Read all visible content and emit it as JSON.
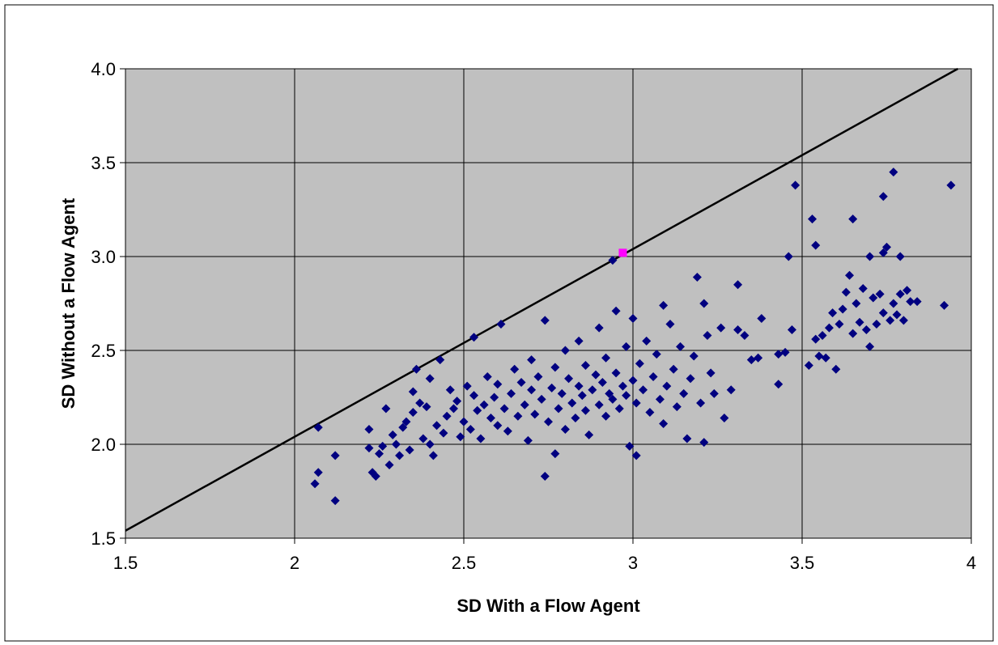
{
  "chart_data": {
    "type": "scatter",
    "xlabel": "SD With a Flow Agent",
    "ylabel": "SD Without a Flow Agent",
    "xlim": [
      1.5,
      4
    ],
    "ylim": [
      1.5,
      4.0
    ],
    "x_ticks": [
      "1.5",
      "2",
      "2.5",
      "3",
      "3.5",
      "4"
    ],
    "y_ticks": [
      "1.5",
      "2.0",
      "2.5",
      "3.0",
      "3.5",
      "4.0"
    ],
    "grid": true,
    "plot_background": "#c0c0c0",
    "reference_line": {
      "name": "",
      "x": [
        1.5,
        3.96
      ],
      "y": [
        1.54,
        4.0
      ],
      "color": "#000000"
    },
    "series": [
      {
        "marker": "diamond",
        "color": "#000080",
        "points": [
          [
            2.07,
            2.09
          ],
          [
            2.06,
            1.79
          ],
          [
            2.07,
            1.85
          ],
          [
            2.12,
            1.94
          ],
          [
            2.12,
            1.7
          ],
          [
            2.22,
            2.08
          ],
          [
            2.22,
            1.98
          ],
          [
            2.23,
            1.85
          ],
          [
            2.24,
            1.83
          ],
          [
            2.25,
            1.95
          ],
          [
            2.26,
            1.99
          ],
          [
            2.27,
            2.19
          ],
          [
            2.28,
            1.89
          ],
          [
            2.29,
            2.05
          ],
          [
            2.3,
            2.0
          ],
          [
            2.31,
            1.94
          ],
          [
            2.32,
            2.09
          ],
          [
            2.33,
            2.12
          ],
          [
            2.34,
            1.97
          ],
          [
            2.35,
            2.17
          ],
          [
            2.35,
            2.28
          ],
          [
            2.36,
            2.4
          ],
          [
            2.37,
            2.22
          ],
          [
            2.38,
            2.03
          ],
          [
            2.39,
            2.2
          ],
          [
            2.4,
            2.0
          ],
          [
            2.4,
            2.35
          ],
          [
            2.41,
            1.94
          ],
          [
            2.42,
            2.1
          ],
          [
            2.43,
            2.45
          ],
          [
            2.44,
            2.06
          ],
          [
            2.45,
            2.15
          ],
          [
            2.46,
            2.29
          ],
          [
            2.47,
            2.19
          ],
          [
            2.48,
            2.23
          ],
          [
            2.49,
            2.04
          ],
          [
            2.5,
            2.12
          ],
          [
            2.51,
            2.31
          ],
          [
            2.52,
            2.08
          ],
          [
            2.53,
            2.26
          ],
          [
            2.53,
            2.57
          ],
          [
            2.54,
            2.18
          ],
          [
            2.55,
            2.03
          ],
          [
            2.56,
            2.21
          ],
          [
            2.57,
            2.36
          ],
          [
            2.58,
            2.14
          ],
          [
            2.59,
            2.25
          ],
          [
            2.6,
            2.1
          ],
          [
            2.6,
            2.32
          ],
          [
            2.61,
            2.64
          ],
          [
            2.62,
            2.19
          ],
          [
            2.63,
            2.07
          ],
          [
            2.64,
            2.27
          ],
          [
            2.65,
            2.4
          ],
          [
            2.66,
            2.15
          ],
          [
            2.67,
            2.33
          ],
          [
            2.68,
            2.21
          ],
          [
            2.69,
            2.02
          ],
          [
            2.7,
            2.29
          ],
          [
            2.7,
            2.45
          ],
          [
            2.71,
            2.16
          ],
          [
            2.72,
            2.36
          ],
          [
            2.73,
            2.24
          ],
          [
            2.74,
            1.83
          ],
          [
            2.74,
            2.66
          ],
          [
            2.75,
            2.12
          ],
          [
            2.76,
            2.3
          ],
          [
            2.77,
            1.95
          ],
          [
            2.77,
            2.41
          ],
          [
            2.78,
            2.19
          ],
          [
            2.79,
            2.27
          ],
          [
            2.8,
            2.08
          ],
          [
            2.8,
            2.5
          ],
          [
            2.81,
            2.35
          ],
          [
            2.82,
            2.22
          ],
          [
            2.83,
            2.14
          ],
          [
            2.84,
            2.31
          ],
          [
            2.84,
            2.55
          ],
          [
            2.85,
            2.26
          ],
          [
            2.86,
            2.18
          ],
          [
            2.86,
            2.42
          ],
          [
            2.87,
            2.05
          ],
          [
            2.88,
            2.29
          ],
          [
            2.89,
            2.37
          ],
          [
            2.9,
            2.21
          ],
          [
            2.9,
            2.62
          ],
          [
            2.91,
            2.33
          ],
          [
            2.92,
            2.15
          ],
          [
            2.92,
            2.46
          ],
          [
            2.93,
            2.27
          ],
          [
            2.94,
            2.24
          ],
          [
            2.94,
            2.98
          ],
          [
            2.95,
            2.71
          ],
          [
            2.95,
            2.38
          ],
          [
            2.96,
            2.19
          ],
          [
            2.97,
            2.31
          ],
          [
            2.98,
            2.52
          ],
          [
            2.98,
            2.26
          ],
          [
            2.99,
            1.99
          ],
          [
            3.0,
            2.34
          ],
          [
            3.0,
            2.67
          ],
          [
            3.01,
            2.22
          ],
          [
            3.01,
            1.94
          ],
          [
            3.02,
            2.43
          ],
          [
            3.03,
            2.29
          ],
          [
            3.04,
            2.55
          ],
          [
            3.05,
            2.17
          ],
          [
            3.06,
            2.36
          ],
          [
            3.07,
            2.48
          ],
          [
            3.08,
            2.24
          ],
          [
            3.09,
            2.74
          ],
          [
            3.09,
            2.11
          ],
          [
            3.1,
            2.31
          ],
          [
            3.11,
            2.64
          ],
          [
            3.12,
            2.4
          ],
          [
            3.13,
            2.2
          ],
          [
            3.14,
            2.52
          ],
          [
            3.15,
            2.27
          ],
          [
            3.16,
            2.03
          ],
          [
            3.17,
            2.35
          ],
          [
            3.18,
            2.47
          ],
          [
            3.19,
            2.89
          ],
          [
            3.2,
            2.22
          ],
          [
            3.21,
            2.75
          ],
          [
            3.21,
            2.01
          ],
          [
            3.22,
            2.58
          ],
          [
            3.23,
            2.38
          ],
          [
            3.24,
            2.27
          ],
          [
            3.26,
            2.62
          ],
          [
            3.27,
            2.14
          ],
          [
            3.29,
            2.29
          ],
          [
            3.31,
            2.85
          ],
          [
            3.31,
            2.61
          ],
          [
            3.33,
            2.58
          ],
          [
            3.35,
            2.45
          ],
          [
            3.37,
            2.46
          ],
          [
            3.38,
            2.67
          ],
          [
            3.43,
            2.32
          ],
          [
            3.43,
            2.48
          ],
          [
            3.45,
            2.49
          ],
          [
            3.46,
            3.0
          ],
          [
            3.47,
            2.61
          ],
          [
            3.48,
            3.38
          ],
          [
            3.52,
            2.42
          ],
          [
            3.53,
            3.2
          ],
          [
            3.54,
            2.56
          ],
          [
            3.54,
            3.06
          ],
          [
            3.55,
            2.47
          ],
          [
            3.56,
            2.58
          ],
          [
            3.57,
            2.46
          ],
          [
            3.58,
            2.62
          ],
          [
            3.59,
            2.7
          ],
          [
            3.6,
            2.4
          ],
          [
            3.61,
            2.64
          ],
          [
            3.62,
            2.72
          ],
          [
            3.63,
            2.81
          ],
          [
            3.64,
            2.9
          ],
          [
            3.65,
            2.59
          ],
          [
            3.65,
            3.2
          ],
          [
            3.66,
            2.75
          ],
          [
            3.67,
            2.65
          ],
          [
            3.68,
            2.83
          ],
          [
            3.69,
            2.61
          ],
          [
            3.7,
            2.52
          ],
          [
            3.7,
            3.0
          ],
          [
            3.71,
            2.78
          ],
          [
            3.72,
            2.64
          ],
          [
            3.73,
            2.8
          ],
          [
            3.74,
            2.7
          ],
          [
            3.74,
            3.32
          ],
          [
            3.74,
            3.02
          ],
          [
            3.75,
            3.05
          ],
          [
            3.76,
            2.66
          ],
          [
            3.77,
            2.75
          ],
          [
            3.77,
            3.45
          ],
          [
            3.78,
            2.69
          ],
          [
            3.79,
            2.8
          ],
          [
            3.79,
            3.0
          ],
          [
            3.8,
            2.66
          ],
          [
            3.81,
            2.82
          ],
          [
            3.82,
            2.76
          ],
          [
            3.84,
            2.76
          ],
          [
            3.92,
            2.74
          ],
          [
            3.94,
            3.38
          ]
        ]
      },
      {
        "marker": "square",
        "color": "#ff00ff",
        "points": [
          [
            2.97,
            3.02
          ]
        ]
      }
    ]
  }
}
